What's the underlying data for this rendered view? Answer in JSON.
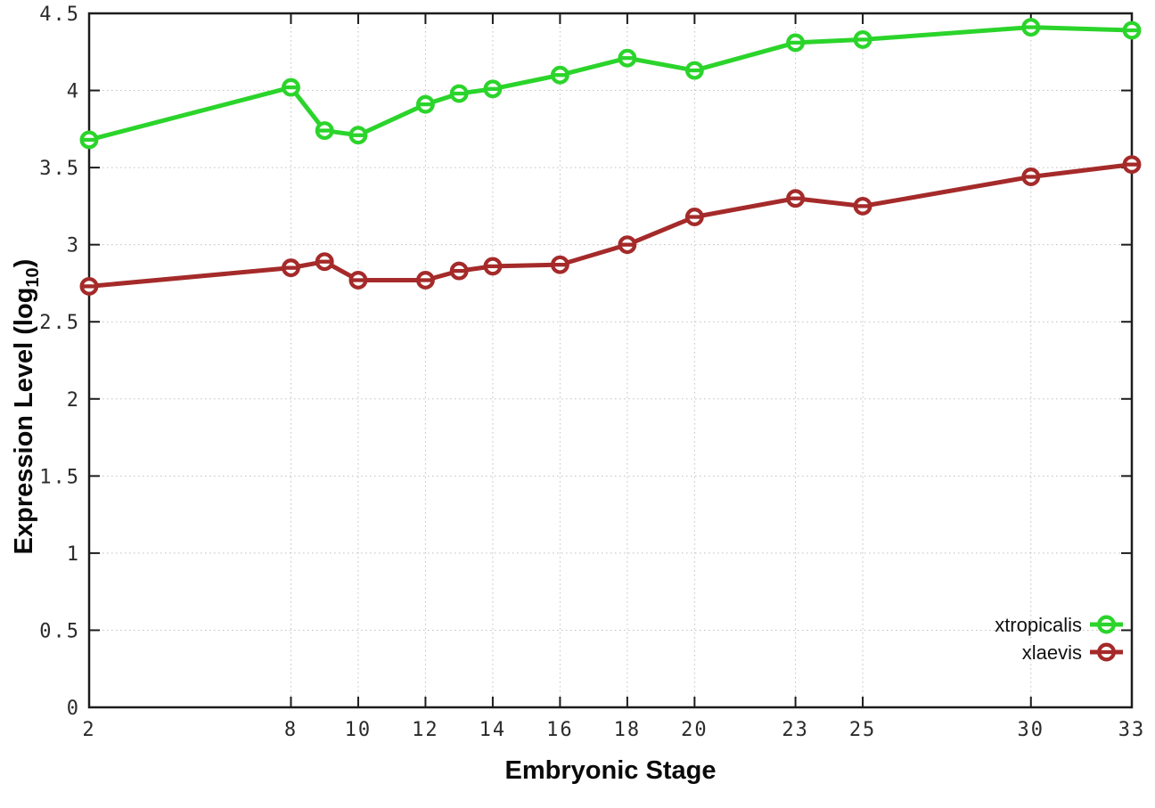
{
  "chart_data": {
    "type": "line",
    "title": "",
    "xlabel": "Embryonic Stage",
    "ylabel": "Expression Level (log10)",
    "ylabel_parts": {
      "main": "Expression Level (log",
      "sub": "10",
      "end": ")"
    },
    "xlim": [
      2,
      33
    ],
    "ylim": [
      0,
      4.5
    ],
    "x_ticks": [
      2,
      8,
      10,
      12,
      14,
      16,
      18,
      20,
      23,
      25,
      30,
      33
    ],
    "x_tick_labels": [
      "2",
      "8",
      "10",
      "12",
      "14",
      "16",
      "18",
      "20",
      "23",
      "25",
      "30",
      "33"
    ],
    "y_ticks": [
      0,
      0.5,
      1,
      1.5,
      2,
      2.5,
      3,
      3.5,
      4,
      4.5
    ],
    "y_tick_labels": [
      "0",
      "0.5",
      "1",
      "1.5",
      "2",
      "2.5",
      "3",
      "3.5",
      "4",
      "4.5"
    ],
    "grid": true,
    "grid_style": "dotted",
    "legend_position": "bottom-right",
    "x": [
      2,
      8,
      9,
      10,
      12,
      13,
      14,
      16,
      18,
      20,
      23,
      25,
      30,
      33
    ],
    "series": [
      {
        "name": "xtropicalis",
        "color": "#2bd42b",
        "marker": "open-circle-with-bar",
        "values": [
          3.68,
          4.02,
          3.74,
          3.71,
          3.91,
          3.98,
          4.01,
          4.1,
          4.21,
          4.13,
          4.31,
          4.33,
          4.41,
          4.39
        ]
      },
      {
        "name": "xlaevis",
        "color": "#a52a2a",
        "marker": "open-circle-with-bar",
        "values": [
          2.73,
          2.85,
          2.89,
          2.77,
          2.77,
          2.83,
          2.86,
          2.87,
          3.0,
          3.18,
          3.3,
          3.25,
          3.44,
          3.52
        ]
      }
    ],
    "colors": {
      "border": "#1c1c1c",
      "grid": "#c0c0c0",
      "tick_text": "#2b2b2b",
      "background": "#ffffff"
    }
  }
}
